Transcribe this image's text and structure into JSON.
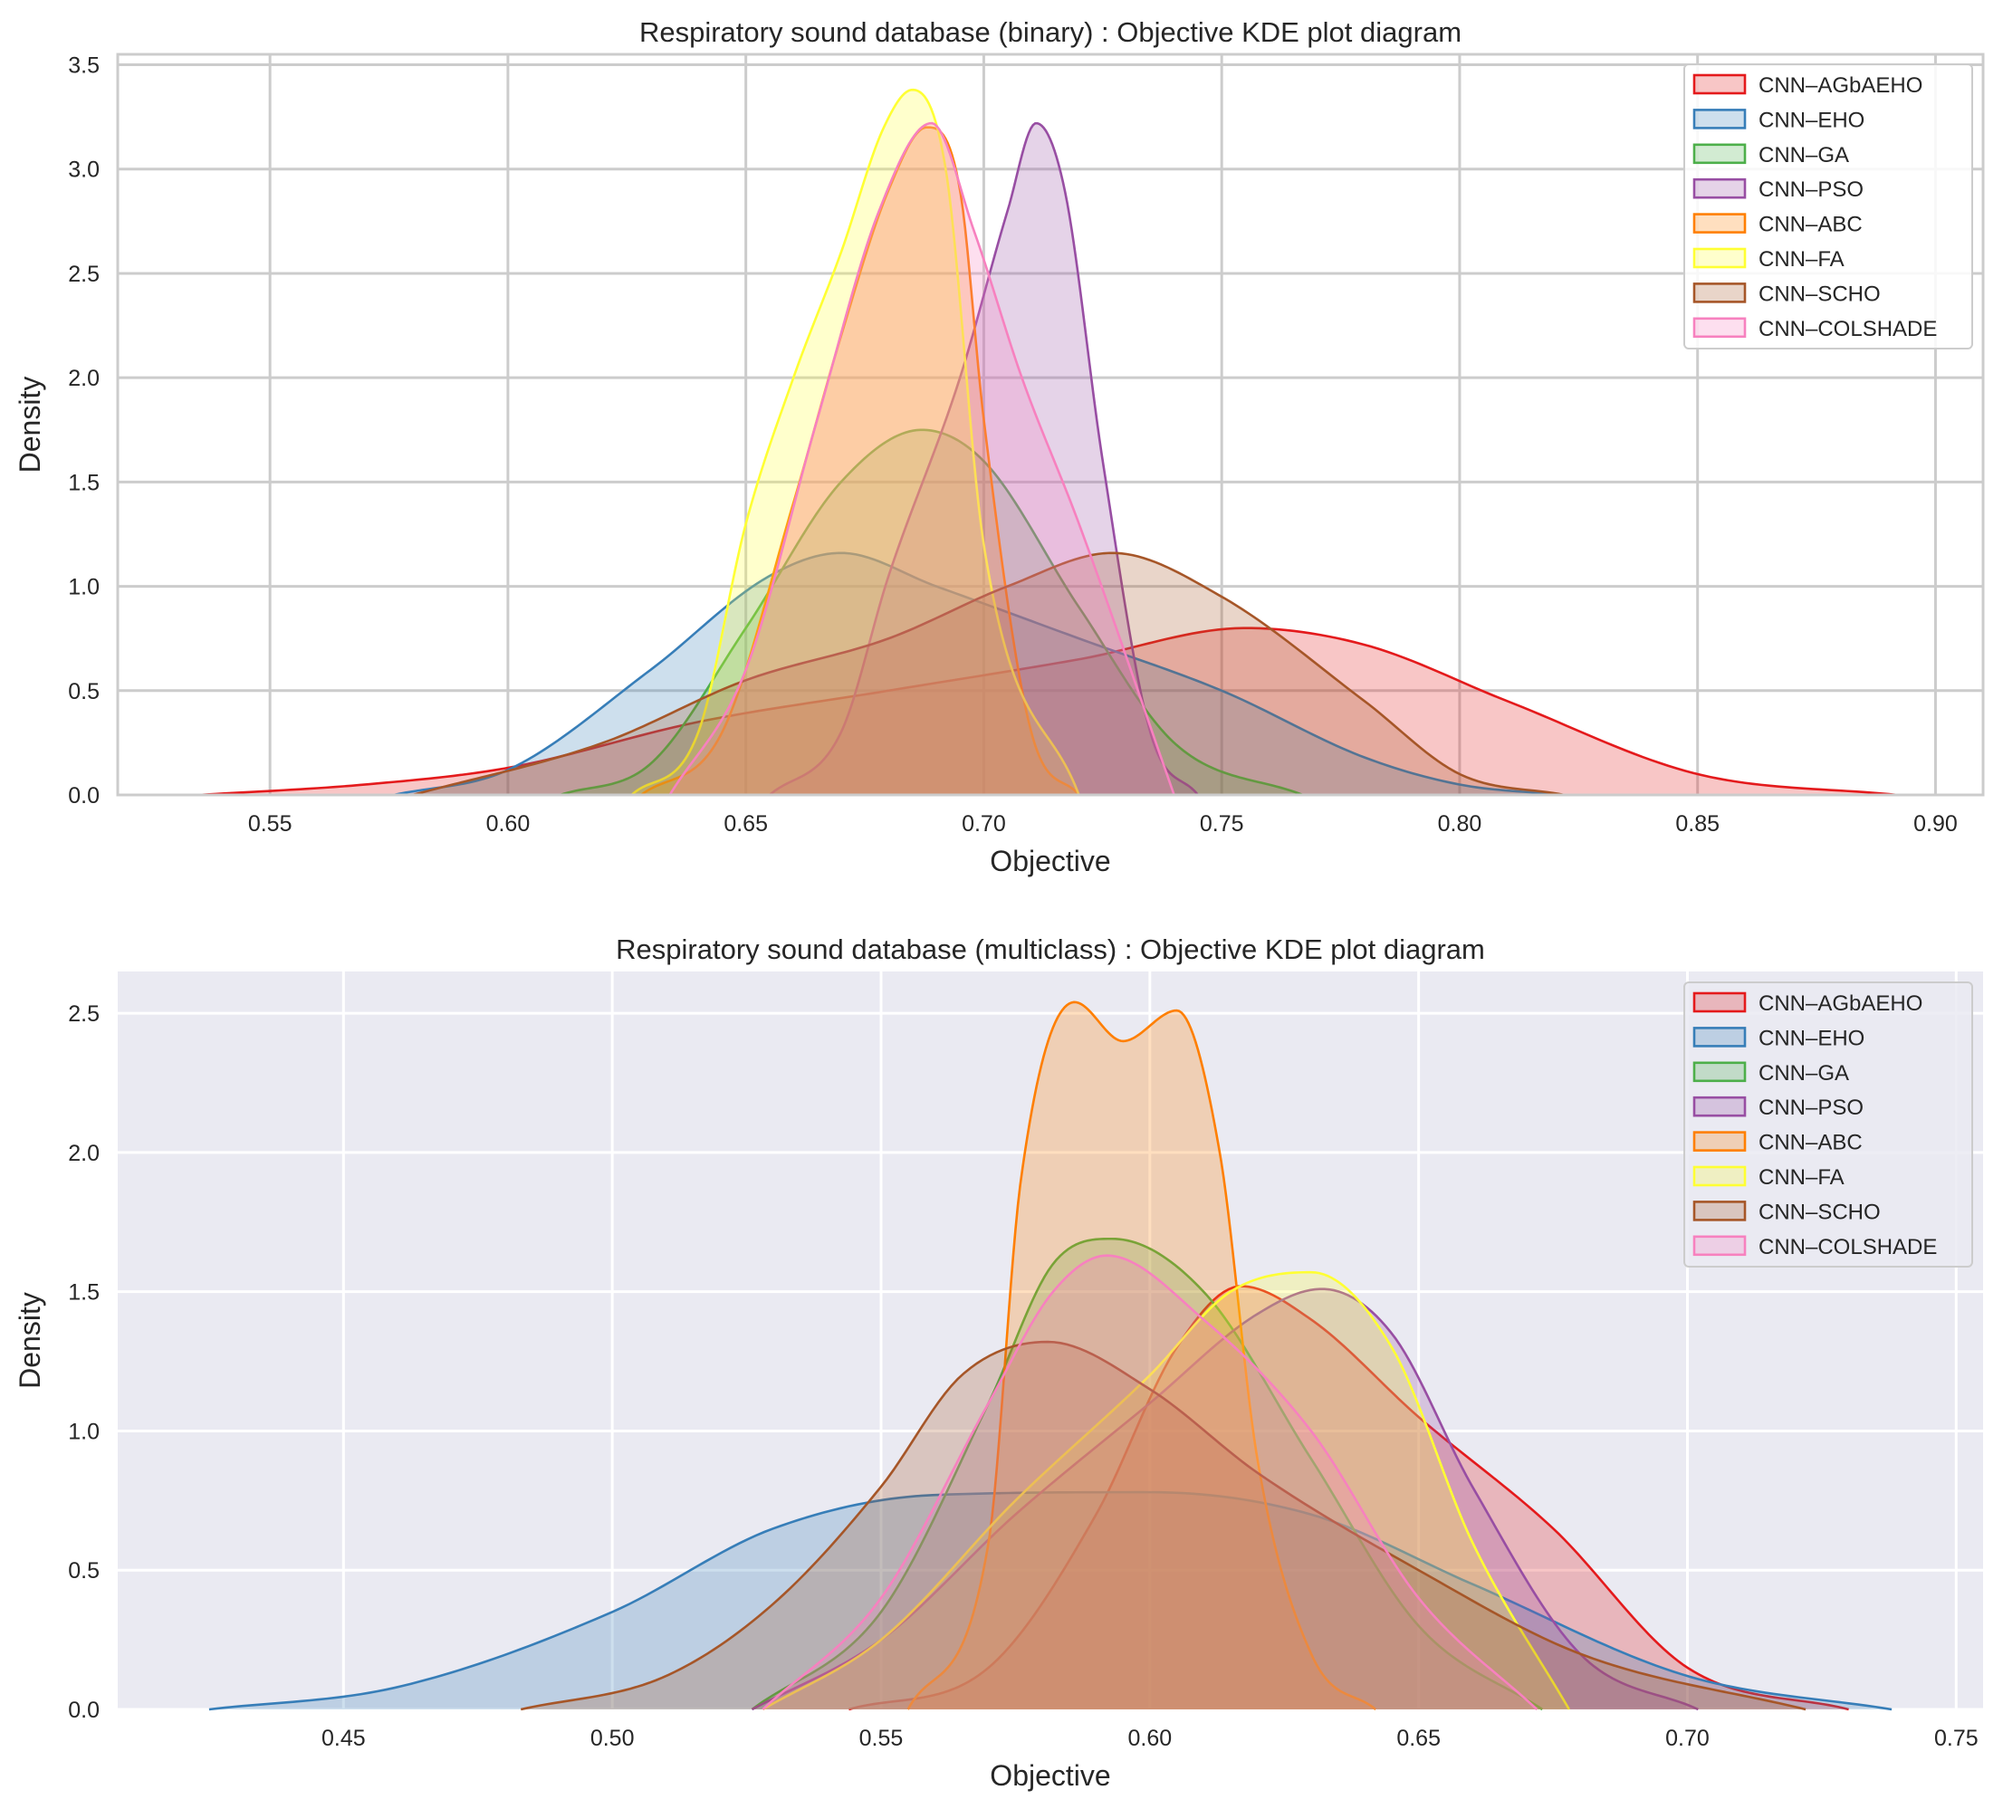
{
  "legend_entries": [
    "CNN–AGbAEHO",
    "CNN–EHO",
    "CNN–GA",
    "CNN–PSO",
    "CNN–ABC",
    "CNN–FA",
    "CNN–SCHO",
    "CNN–COLSHADE"
  ],
  "series_colors": [
    "#e41a1c",
    "#377eb8",
    "#4daf4a",
    "#984ea3",
    "#ff7f00",
    "#ffff33",
    "#a65628",
    "#f781bf"
  ],
  "chart_data": [
    {
      "type": "area",
      "style": "whitegrid",
      "title": "Respiratory sound database (binary) : Objective KDE plot diagram",
      "xlabel": "Objective",
      "ylabel": "Density",
      "xlim": [
        0.518,
        0.91
      ],
      "ylim": [
        0,
        3.55
      ],
      "xticks": [
        0.55,
        0.6,
        0.65,
        0.7,
        0.75,
        0.8,
        0.85,
        0.9
      ],
      "xtick_labels": [
        "0.55",
        "0.60",
        "0.65",
        "0.70",
        "0.75",
        "0.80",
        "0.85",
        "0.90"
      ],
      "yticks": [
        0.0,
        0.5,
        1.0,
        1.5,
        2.0,
        2.5,
        3.0,
        3.5
      ],
      "ytick_labels": [
        "0.0",
        "0.5",
        "1.0",
        "1.5",
        "2.0",
        "2.5",
        "3.0",
        "3.5"
      ],
      "legend_position": "top-right",
      "series": [
        {
          "name": "CNN–AGbAEHO",
          "x": [
            0.535,
            0.57,
            0.6,
            0.64,
            0.68,
            0.72,
            0.755,
            0.78,
            0.81,
            0.85,
            0.892
          ],
          "density": [
            0.0,
            0.05,
            0.13,
            0.35,
            0.5,
            0.65,
            0.8,
            0.72,
            0.45,
            0.1,
            0.0
          ]
        },
        {
          "name": "CNN–EHO",
          "x": [
            0.576,
            0.6,
            0.63,
            0.655,
            0.67,
            0.69,
            0.72,
            0.75,
            0.78,
            0.8,
            0.822
          ],
          "density": [
            0.0,
            0.12,
            0.6,
            1.05,
            1.16,
            1.0,
            0.75,
            0.5,
            0.18,
            0.05,
            0.0
          ]
        },
        {
          "name": "CNN–GA",
          "x": [
            0.611,
            0.63,
            0.65,
            0.67,
            0.687,
            0.7,
            0.72,
            0.74,
            0.767
          ],
          "density": [
            0.0,
            0.15,
            0.8,
            1.5,
            1.75,
            1.6,
            0.9,
            0.25,
            0.0
          ]
        },
        {
          "name": "CNN–PSO",
          "x": [
            0.655,
            0.67,
            0.68,
            0.695,
            0.705,
            0.711,
            0.717,
            0.725,
            0.735,
            0.745
          ],
          "density": [
            0.0,
            0.3,
            1.05,
            2.0,
            2.8,
            3.22,
            2.9,
            1.6,
            0.3,
            0.0
          ]
        },
        {
          "name": "CNN–ABC",
          "x": [
            0.628,
            0.645,
            0.66,
            0.67,
            0.68,
            0.688,
            0.695,
            0.7,
            0.71,
            0.72
          ],
          "density": [
            0.0,
            0.3,
            1.4,
            2.2,
            2.9,
            3.2,
            2.9,
            1.8,
            0.3,
            0.0
          ]
        },
        {
          "name": "CNN–FA",
          "x": [
            0.626,
            0.64,
            0.65,
            0.66,
            0.67,
            0.679,
            0.685,
            0.692,
            0.7,
            0.72
          ],
          "density": [
            0.0,
            0.3,
            1.3,
            2.0,
            2.6,
            3.2,
            3.38,
            3.0,
            1.2,
            0.0
          ]
        },
        {
          "name": "CNN–SCHO",
          "x": [
            0.58,
            0.62,
            0.65,
            0.68,
            0.705,
            0.727,
            0.75,
            0.78,
            0.8,
            0.822
          ],
          "density": [
            0.0,
            0.25,
            0.55,
            0.75,
            1.0,
            1.16,
            0.95,
            0.45,
            0.1,
            0.0
          ]
        },
        {
          "name": "CNN–COLSHADE",
          "x": [
            0.634,
            0.65,
            0.665,
            0.678,
            0.689,
            0.698,
            0.708,
            0.72,
            0.74
          ],
          "density": [
            0.0,
            0.6,
            1.8,
            2.8,
            3.22,
            2.7,
            2.0,
            1.3,
            0.0
          ]
        }
      ]
    },
    {
      "type": "area",
      "style": "darkgrid",
      "title": "Respiratory sound database (multiclass) : Objective KDE plot diagram",
      "xlabel": "Objective",
      "ylabel": "Density",
      "xlim": [
        0.408,
        0.755
      ],
      "ylim": [
        0,
        2.65
      ],
      "xticks": [
        0.45,
        0.5,
        0.55,
        0.6,
        0.65,
        0.7,
        0.75
      ],
      "xtick_labels": [
        "0.45",
        "0.50",
        "0.55",
        "0.60",
        "0.65",
        "0.70",
        "0.75"
      ],
      "yticks": [
        0.0,
        0.5,
        1.0,
        1.5,
        2.0,
        2.5
      ],
      "ytick_labels": [
        "0.0",
        "0.5",
        "1.0",
        "1.5",
        "2.0",
        "2.5"
      ],
      "legend_position": "top-right",
      "series": [
        {
          "name": "CNN–AGbAEHO",
          "x": [
            0.544,
            0.57,
            0.59,
            0.605,
            0.617,
            0.63,
            0.65,
            0.675,
            0.7,
            0.73
          ],
          "density": [
            0.0,
            0.15,
            0.7,
            1.3,
            1.52,
            1.4,
            1.05,
            0.65,
            0.15,
            0.0
          ]
        },
        {
          "name": "CNN–EHO",
          "x": [
            0.425,
            0.46,
            0.5,
            0.53,
            0.56,
            0.6,
            0.63,
            0.66,
            0.7,
            0.738
          ],
          "density": [
            0.0,
            0.08,
            0.35,
            0.65,
            0.77,
            0.78,
            0.7,
            0.45,
            0.12,
            0.0
          ]
        },
        {
          "name": "CNN–GA",
          "x": [
            0.526,
            0.55,
            0.57,
            0.582,
            0.593,
            0.61,
            0.63,
            0.65,
            0.673
          ],
          "density": [
            0.0,
            0.35,
            1.1,
            1.6,
            1.69,
            1.5,
            0.9,
            0.3,
            0.0
          ]
        },
        {
          "name": "CNN–PSO",
          "x": [
            0.526,
            0.55,
            0.575,
            0.6,
            0.62,
            0.632,
            0.645,
            0.66,
            0.68,
            0.702
          ],
          "density": [
            0.0,
            0.25,
            0.7,
            1.1,
            1.42,
            1.51,
            1.35,
            0.8,
            0.2,
            0.0
          ]
        },
        {
          "name": "CNN–ABC",
          "x": [
            0.555,
            0.57,
            0.576,
            0.586,
            0.595,
            0.605,
            0.613,
            0.62,
            0.63,
            0.642
          ],
          "density": [
            0.0,
            0.6,
            1.9,
            2.54,
            2.4,
            2.51,
            2.0,
            0.9,
            0.2,
            0.0
          ]
        },
        {
          "name": "CNN–FA",
          "x": [
            0.528,
            0.55,
            0.575,
            0.6,
            0.615,
            0.63,
            0.645,
            0.66,
            0.678
          ],
          "density": [
            0.0,
            0.25,
            0.75,
            1.2,
            1.5,
            1.57,
            1.3,
            0.6,
            0.0
          ]
        },
        {
          "name": "CNN–SCHO",
          "x": [
            0.483,
            0.51,
            0.53,
            0.55,
            0.565,
            0.581,
            0.6,
            0.62,
            0.65,
            0.68,
            0.722
          ],
          "density": [
            0.0,
            0.12,
            0.38,
            0.8,
            1.2,
            1.32,
            1.15,
            0.85,
            0.5,
            0.2,
            0.0
          ]
        },
        {
          "name": "CNN–COLSHADE",
          "x": [
            0.528,
            0.55,
            0.57,
            0.582,
            0.592,
            0.61,
            0.63,
            0.65,
            0.672
          ],
          "density": [
            0.0,
            0.4,
            1.1,
            1.5,
            1.63,
            1.4,
            1.0,
            0.4,
            0.0
          ]
        }
      ]
    }
  ]
}
